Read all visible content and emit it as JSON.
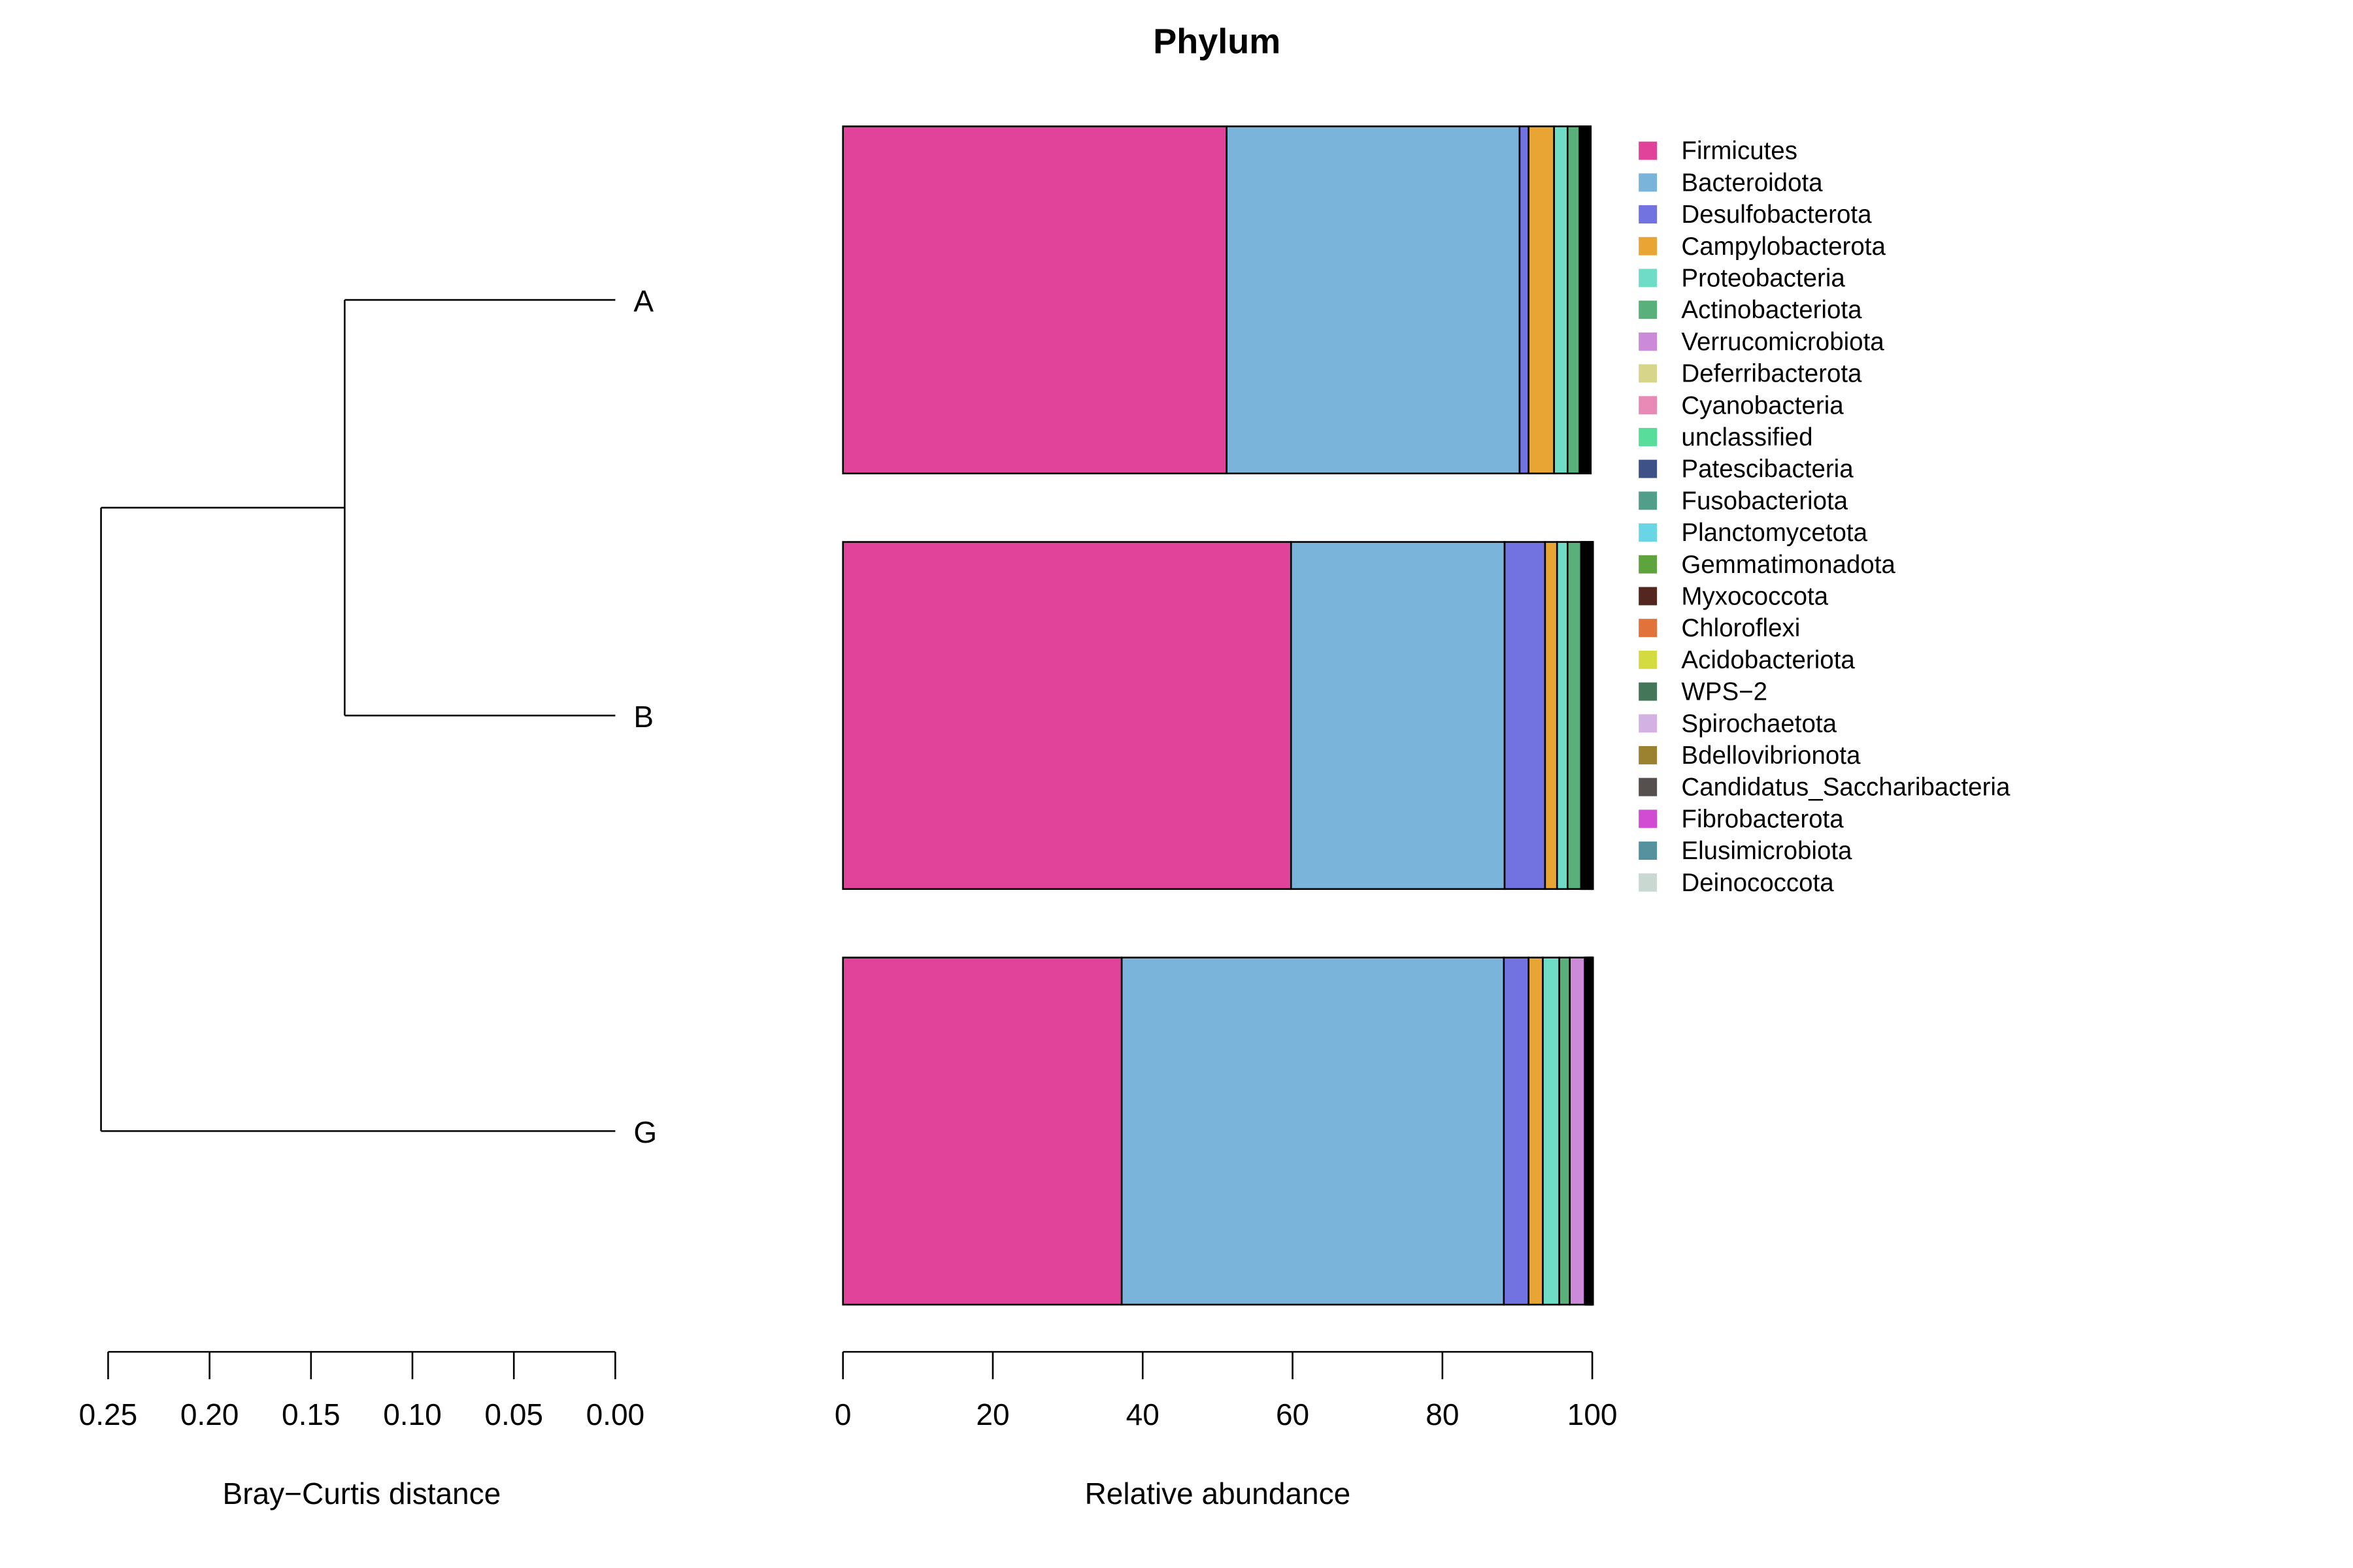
{
  "chart_data": {
    "type": "bar",
    "title": "Phylum",
    "orientation": "horizontal",
    "stacked": true,
    "samples": [
      "A",
      "B",
      "G"
    ],
    "phyla": [
      {
        "name": "Firmicutes",
        "color": "#E2439A"
      },
      {
        "name": "Bacteroidota",
        "color": "#7AB4DA"
      },
      {
        "name": "Desulfobacterota",
        "color": "#7272E1"
      },
      {
        "name": "Campylobacterota",
        "color": "#E8A534"
      },
      {
        "name": "Proteobacteria",
        "color": "#6FDCC5"
      },
      {
        "name": "Actinobacteriota",
        "color": "#5AB07A"
      },
      {
        "name": "Verrucomicrobiota",
        "color": "#CB8BD8"
      },
      {
        "name": "Deferribacterota",
        "color": "#D6D58A"
      },
      {
        "name": "Cyanobacteria",
        "color": "#E889B6"
      },
      {
        "name": "unclassified",
        "color": "#58DD9B"
      },
      {
        "name": "Patescibacteria",
        "color": "#3F5288"
      },
      {
        "name": "Fusobacteriota",
        "color": "#519F8A"
      },
      {
        "name": "Planctomycetota",
        "color": "#6AD6E5"
      },
      {
        "name": "Gemmatimonadota",
        "color": "#5EA33E"
      },
      {
        "name": "Myxococcota",
        "color": "#542620"
      },
      {
        "name": "Chloroflexi",
        "color": "#E2723C"
      },
      {
        "name": "Acidobacteriota",
        "color": "#D3DB40"
      },
      {
        "name": "WPS−2",
        "color": "#44765A"
      },
      {
        "name": "Spirochaetota",
        "color": "#D3B2E3"
      },
      {
        "name": "Bdellovibrionota",
        "color": "#9A8231"
      },
      {
        "name": "Candidatus_Saccharibacteria",
        "color": "#55504D"
      },
      {
        "name": "Fibrobacterota",
        "color": "#D04DD3"
      },
      {
        "name": "Elusimicrobiota",
        "color": "#56919E"
      },
      {
        "name": "Deinococcota",
        "color": "#C9D9D1"
      }
    ],
    "series": [
      {
        "name": "Firmicutes",
        "values": [
          51.2,
          59.8,
          37.2
        ]
      },
      {
        "name": "Bacteroidota",
        "values": [
          39.1,
          28.5,
          51.0
        ]
      },
      {
        "name": "Desulfobacterota",
        "values": [
          1.2,
          5.4,
          3.3
        ]
      },
      {
        "name": "Campylobacterota",
        "values": [
          3.4,
          1.6,
          1.9
        ]
      },
      {
        "name": "Proteobacteria",
        "values": [
          1.8,
          1.4,
          2.2
        ]
      },
      {
        "name": "Actinobacteriota",
        "values": [
          1.6,
          1.8,
          1.4
        ]
      },
      {
        "name": "Verrucomicrobiota",
        "values": [
          0.2,
          0.1,
          2.0
        ]
      },
      {
        "name": "Deferribacterota",
        "values": [
          0.1,
          0.1,
          0.1
        ]
      },
      {
        "name": "Cyanobacteria",
        "values": [
          0.1,
          0.1,
          0.1
        ]
      },
      {
        "name": "unclassified",
        "values": [
          0.1,
          0.1,
          0.1
        ]
      },
      {
        "name": "Patescibacteria",
        "values": [
          0.1,
          0.1,
          0.1
        ]
      },
      {
        "name": "Fusobacteriota",
        "values": [
          0.1,
          0.1,
          0.1
        ]
      },
      {
        "name": "Planctomycetota",
        "values": [
          0.1,
          0.1,
          0.05
        ]
      },
      {
        "name": "Gemmatimonadota",
        "values": [
          0.1,
          0.2,
          0.05
        ]
      },
      {
        "name": "Myxococcota",
        "values": [
          0.1,
          0.1,
          0.05
        ]
      },
      {
        "name": "Chloroflexi",
        "values": [
          0.1,
          0.1,
          0.05
        ]
      },
      {
        "name": "Acidobacteriota",
        "values": [
          0.05,
          0.1,
          0.05
        ]
      },
      {
        "name": "WPS−2",
        "values": [
          0.05,
          0.1,
          0.05
        ]
      },
      {
        "name": "Spirochaetota",
        "values": [
          0.05,
          0.05,
          0.05
        ]
      },
      {
        "name": "Bdellovibrionota",
        "values": [
          0.05,
          0.05,
          0.05
        ]
      },
      {
        "name": "Candidatus_Saccharibacteria",
        "values": [
          0.05,
          0.05,
          0.05
        ]
      },
      {
        "name": "Fibrobacterota",
        "values": [
          0.05,
          0.05,
          0.05
        ]
      },
      {
        "name": "Elusimicrobiota",
        "values": [
          0.05,
          0.05,
          0.05
        ]
      },
      {
        "name": "Deinococcota",
        "values": [
          0.05,
          0.05,
          0.05
        ]
      }
    ],
    "xlabel": "Relative abundance",
    "xlim": [
      0,
      100
    ],
    "xticks": [
      "0",
      "20",
      "40",
      "60",
      "80",
      "100"
    ],
    "grid": false,
    "legend_position": "right",
    "dendrogram": {
      "xlabel": "Bray−Curtis distance",
      "xlim": [
        0.25,
        0
      ],
      "xticks": [
        "0.25",
        "0.20",
        "0.15",
        "0.10",
        "0.05",
        "0.00"
      ],
      "merges": [
        {
          "left": "A",
          "right": "B",
          "height": 0.1334
        },
        {
          "left": "A,B",
          "right": "G",
          "height": 0.2535
        }
      ]
    }
  }
}
